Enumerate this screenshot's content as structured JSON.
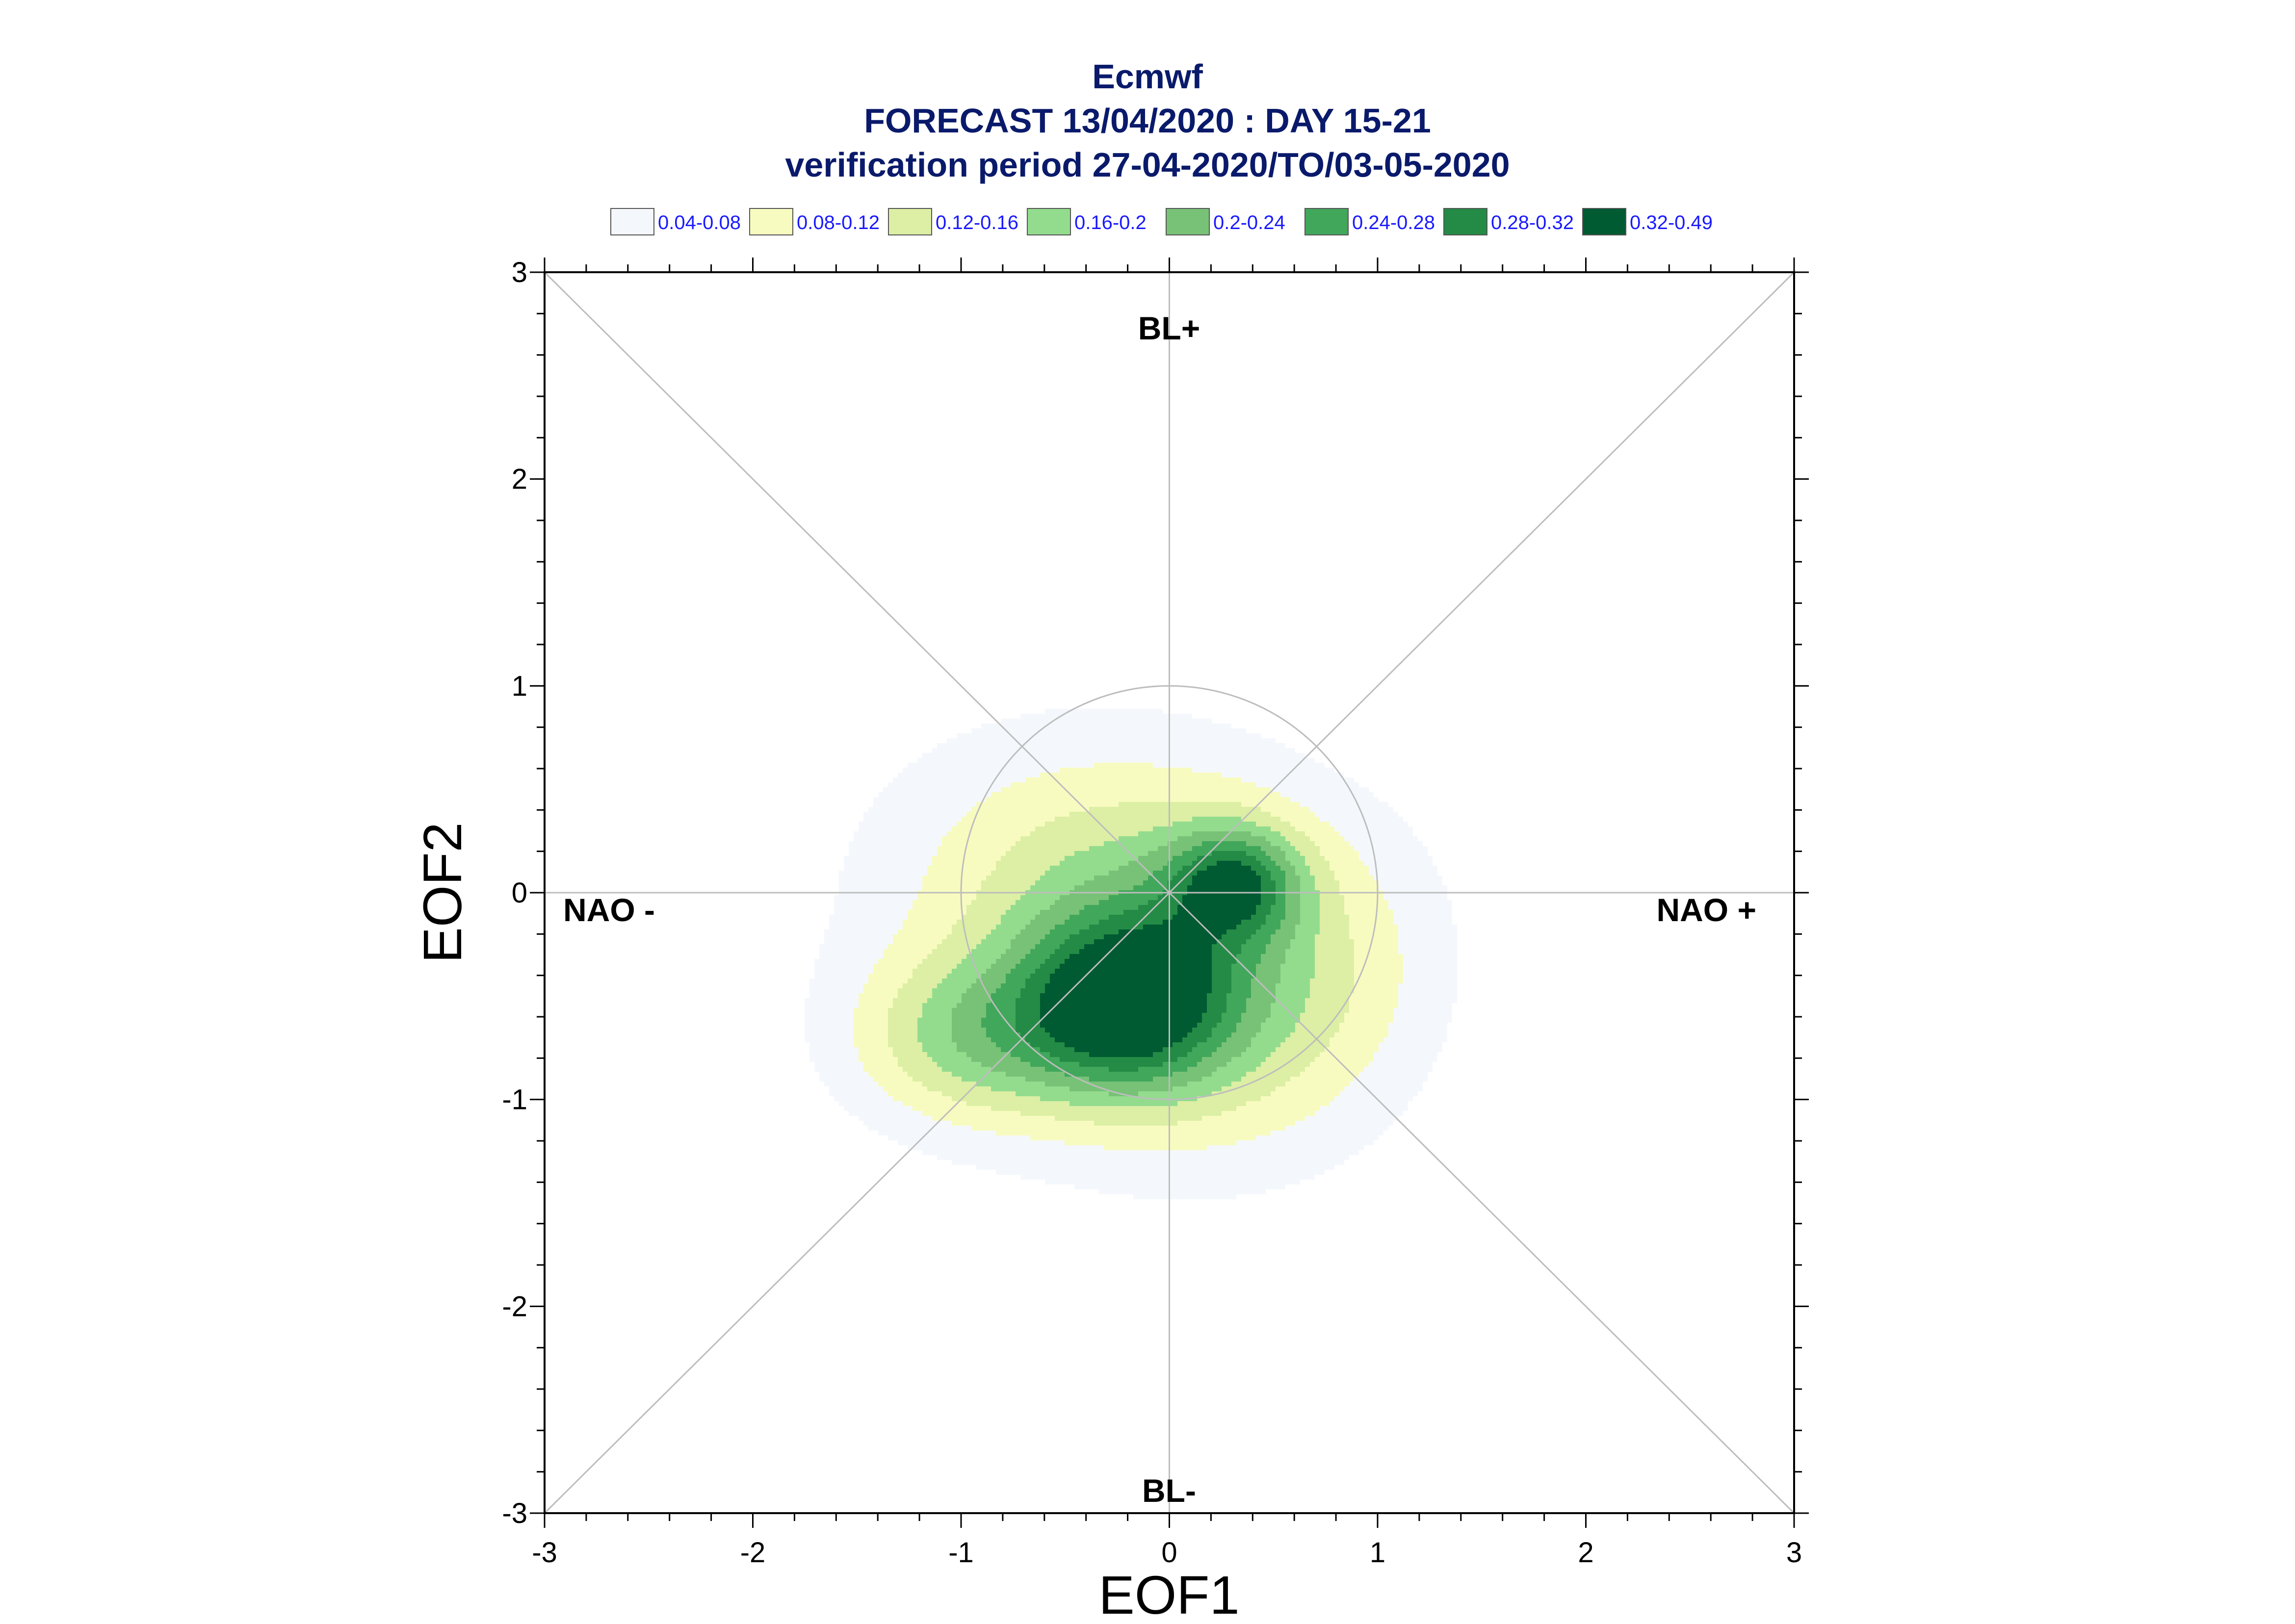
{
  "chart_data": {
    "type": "contour",
    "title": "Ecmwf",
    "subtitle": "FORECAST 13/04/2020 : DAY 15-21",
    "subtitle2": "verification period 27-04-2020/TO/03-05-2020",
    "xlabel": "EOF1",
    "ylabel": "EOF2",
    "xlim": [
      -3,
      3
    ],
    "ylim": [
      -3,
      3
    ],
    "xticks": [
      -3,
      -2,
      -1,
      0,
      1,
      2,
      3
    ],
    "yticks": [
      -3,
      -2,
      -1,
      0,
      1,
      2,
      3
    ],
    "xtick_labels": [
      "-3",
      "-2",
      "-1",
      "0",
      "1",
      "2",
      "3"
    ],
    "ytick_labels": [
      "-3",
      "-2",
      "-1",
      "0",
      "1",
      "2",
      "3"
    ],
    "legend_position": "top",
    "legend": [
      {
        "label": "0.04-0.08",
        "color": "#f4f8fc"
      },
      {
        "label": "0.08-0.12",
        "color": "#f8fbc0"
      },
      {
        "label": "0.12-0.16",
        "color": "#dcefa4"
      },
      {
        "label": "0.16-0.2",
        "color": "#93dc8e"
      },
      {
        "label": "0.2-0.24",
        "color": "#78c277"
      },
      {
        "label": "0.24-0.28",
        "color": "#41a75b"
      },
      {
        "label": "0.28-0.32",
        "color": "#238b45"
      },
      {
        "label": "0.32-0.49",
        "color": "#005a32"
      }
    ],
    "regime_labels": {
      "top": "BL+",
      "bottom": "BL-",
      "left": "NAO -",
      "right": "NAO +"
    },
    "reference_circle_radius": 1,
    "density_peaks": [
      {
        "x": -0.2,
        "y": -0.55,
        "level": "0.32-0.49"
      },
      {
        "x": 0.32,
        "y": 0.05,
        "level": "0.32-0.49"
      }
    ]
  }
}
